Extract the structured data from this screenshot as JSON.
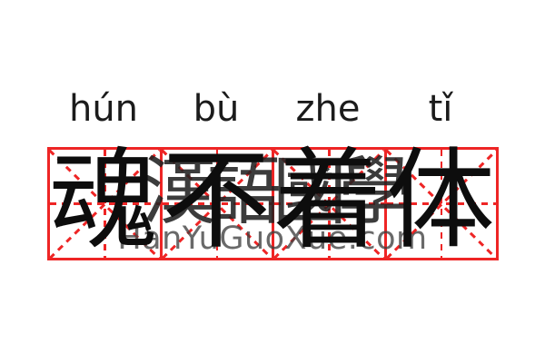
{
  "card": {
    "pinyin": {
      "syllables": [
        "hún",
        "bù",
        "zhe",
        "tǐ"
      ]
    },
    "word": {
      "characters": [
        "魂",
        "不",
        "着",
        "体"
      ]
    },
    "watermark": {
      "cjk_text": "漢語國學",
      "site_text": "HanYuGuoXue.com"
    },
    "grid": {
      "cell_count": 4,
      "style": "mi-zi-ge"
    },
    "colors": {
      "grid_red": "#ee2525",
      "pinyin_text": "#1b1b1b",
      "hanzi_text": "#0d0d0d",
      "watermark_cjk": "#222222",
      "watermark_site": "#3f3f3f",
      "background": "#ffffff"
    }
  }
}
